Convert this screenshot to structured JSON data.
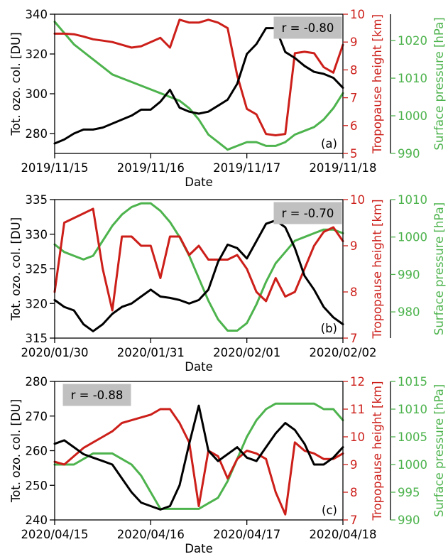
{
  "colors": {
    "ozone": "#000000",
    "tropopause": "#cc1f1a",
    "pressure": "#4db34d",
    "rbox": "#c0c0c0"
  },
  "chart_data": [
    {
      "type": "line",
      "panel_label": "(a)",
      "xlabel": "Date",
      "xticks": [
        "2019/11/15",
        "2019/11/16",
        "2019/11/17",
        "2019/11/18"
      ],
      "xlim": [
        0,
        3
      ],
      "y_left": {
        "label": "Tot. ozo. col. [DU]",
        "lim": [
          270,
          340
        ],
        "ticks": [
          280,
          300,
          320,
          340
        ]
      },
      "y_right1": {
        "label": "Tropopause height [km]",
        "lim": [
          5,
          10
        ],
        "ticks": [
          5,
          6,
          7,
          8,
          9,
          10
        ]
      },
      "y_right2": {
        "label": "Surface pressure [hPa]",
        "lim": [
          990,
          1027
        ],
        "ticks": [
          990,
          1000,
          1010,
          1020
        ]
      },
      "annotation": "r = -0.80",
      "annotation_position": "top-right",
      "series": [
        {
          "axis": "left",
          "color_key": "ozone",
          "x": [
            0,
            0.1,
            0.2,
            0.3,
            0.4,
            0.5,
            0.6,
            0.7,
            0.8,
            0.9,
            1.0,
            1.1,
            1.2,
            1.3,
            1.4,
            1.5,
            1.6,
            1.7,
            1.8,
            1.9,
            2.0,
            2.1,
            2.2,
            2.3,
            2.4,
            2.5,
            2.6,
            2.7,
            2.8,
            2.9,
            3.0
          ],
          "y": [
            275,
            277,
            280,
            282,
            282,
            283,
            285,
            287,
            289,
            292,
            292,
            296,
            302,
            293,
            291,
            290,
            291,
            294,
            297,
            305,
            320,
            325,
            333,
            333,
            321,
            318,
            314,
            311,
            310,
            308,
            303
          ]
        },
        {
          "axis": "right1",
          "color_key": "tropopause",
          "x": [
            0,
            0.1,
            0.2,
            0.3,
            0.4,
            0.5,
            0.6,
            0.7,
            0.8,
            0.9,
            1.0,
            1.1,
            1.2,
            1.3,
            1.4,
            1.5,
            1.6,
            1.7,
            1.8,
            1.9,
            2.0,
            2.1,
            2.2,
            2.3,
            2.4,
            2.5,
            2.6,
            2.7,
            2.8,
            2.9,
            3.0
          ],
          "y": [
            9.3,
            9.3,
            9.28,
            9.2,
            9.1,
            9.05,
            9.0,
            8.9,
            8.8,
            8.85,
            9.0,
            9.15,
            8.8,
            9.8,
            9.7,
            9.7,
            9.8,
            9.7,
            9.5,
            7.8,
            6.6,
            6.4,
            5.7,
            5.65,
            5.7,
            8.6,
            8.65,
            8.6,
            8.1,
            7.9,
            8.9
          ]
        },
        {
          "axis": "right2",
          "color_key": "pressure",
          "x": [
            0,
            0.1,
            0.2,
            0.3,
            0.4,
            0.5,
            0.6,
            0.7,
            0.8,
            0.9,
            1.0,
            1.1,
            1.2,
            1.3,
            1.4,
            1.5,
            1.6,
            1.7,
            1.8,
            1.9,
            2.0,
            2.1,
            2.2,
            2.3,
            2.4,
            2.5,
            2.6,
            2.7,
            2.8,
            2.9,
            3.0
          ],
          "y": [
            1025,
            1022,
            1019,
            1017,
            1015,
            1013,
            1011,
            1010,
            1009,
            1008,
            1007,
            1006,
            1005,
            1004,
            1002,
            999,
            995,
            993,
            991,
            992,
            993,
            993,
            992,
            992,
            993,
            995,
            996,
            997,
            999,
            1002,
            1006
          ]
        }
      ]
    },
    {
      "type": "line",
      "panel_label": "(b)",
      "xlabel": "Date",
      "xticks": [
        "2020/01/30",
        "2020/01/31",
        "2020/02/01",
        "2020/02/02"
      ],
      "xlim": [
        0,
        3
      ],
      "y_left": {
        "label": "Tot. ozo. col. [DU]",
        "lim": [
          315,
          335
        ],
        "ticks": [
          315,
          320,
          325,
          330,
          335
        ]
      },
      "y_right1": {
        "label": "Tropopause height [km]",
        "lim": [
          7,
          10
        ],
        "ticks": [
          7,
          8,
          9,
          10
        ]
      },
      "y_right2": {
        "label": "Surface pressure [hPa]",
        "lim": [
          973,
          1010
        ],
        "ticks": [
          980,
          990,
          1000,
          1010
        ]
      },
      "annotation": "r = -0.70",
      "annotation_position": "top-right",
      "series": [
        {
          "axis": "left",
          "color_key": "ozone",
          "x": [
            0,
            0.1,
            0.2,
            0.3,
            0.4,
            0.5,
            0.6,
            0.7,
            0.8,
            0.9,
            1.0,
            1.1,
            1.2,
            1.3,
            1.4,
            1.5,
            1.6,
            1.7,
            1.8,
            1.9,
            2.0,
            2.1,
            2.2,
            2.3,
            2.4,
            2.5,
            2.6,
            2.7,
            2.8,
            2.9,
            3.0
          ],
          "y": [
            320.5,
            319.5,
            319,
            317,
            316,
            317,
            318.5,
            319.5,
            320,
            321,
            322,
            321,
            320.8,
            320.5,
            320,
            320.5,
            322,
            326,
            328.5,
            328,
            326.5,
            329,
            331.5,
            332,
            331,
            328,
            324,
            322,
            319.5,
            318,
            317
          ]
        },
        {
          "axis": "right1",
          "color_key": "tropopause",
          "x": [
            0,
            0.1,
            0.2,
            0.3,
            0.4,
            0.5,
            0.6,
            0.7,
            0.8,
            0.9,
            1.0,
            1.1,
            1.2,
            1.3,
            1.4,
            1.5,
            1.6,
            1.7,
            1.8,
            1.9,
            2.0,
            2.1,
            2.2,
            2.3,
            2.4,
            2.5,
            2.6,
            2.7,
            2.8,
            2.9,
            3.0
          ],
          "y": [
            8.0,
            9.5,
            9.6,
            9.7,
            9.8,
            8.5,
            7.6,
            9.2,
            9.2,
            9.0,
            9.0,
            8.3,
            9.2,
            9.2,
            8.8,
            9.0,
            8.7,
            8.7,
            8.7,
            8.8,
            8.5,
            8.0,
            7.8,
            8.3,
            7.9,
            8.0,
            8.5,
            9.0,
            9.3,
            9.4,
            9.1
          ]
        },
        {
          "axis": "right2",
          "color_key": "pressure",
          "x": [
            0,
            0.1,
            0.2,
            0.3,
            0.4,
            0.5,
            0.6,
            0.7,
            0.8,
            0.9,
            1.0,
            1.1,
            1.2,
            1.3,
            1.4,
            1.5,
            1.6,
            1.7,
            1.8,
            1.9,
            2.0,
            2.1,
            2.2,
            2.3,
            2.4,
            2.5,
            2.6,
            2.7,
            2.8,
            2.9,
            3.0
          ],
          "y": [
            998,
            996,
            995,
            994,
            995,
            999,
            1003,
            1006,
            1008,
            1009,
            1009,
            1007,
            1004,
            1000,
            995,
            989,
            983,
            978,
            975,
            975,
            977,
            982,
            988,
            993,
            996,
            999,
            1000,
            1001,
            1002,
            1002,
            1001
          ]
        }
      ]
    },
    {
      "type": "line",
      "panel_label": "(c)",
      "xlabel": "Date",
      "xticks": [
        "2020/04/15",
        "2020/04/16",
        "2020/04/17",
        "2020/04/18"
      ],
      "xlim": [
        0,
        3
      ],
      "y_left": {
        "label": "Tot. ozo. col. [DU]",
        "lim": [
          240,
          280
        ],
        "ticks": [
          240,
          250,
          260,
          270,
          280
        ]
      },
      "y_right1": {
        "label": "Tropopause height [km]",
        "lim": [
          7,
          12
        ],
        "ticks": [
          7,
          8,
          9,
          10,
          11,
          12
        ]
      },
      "y_right2": {
        "label": "Surface pressure [hPa]",
        "lim": [
          990,
          1015
        ],
        "ticks": [
          990,
          995,
          1000,
          1005,
          1010,
          1015
        ]
      },
      "annotation": "r = -0.88",
      "annotation_position": "top-left",
      "series": [
        {
          "axis": "left",
          "color_key": "ozone",
          "x": [
            0,
            0.1,
            0.2,
            0.3,
            0.4,
            0.5,
            0.6,
            0.7,
            0.8,
            0.9,
            1.0,
            1.1,
            1.2,
            1.3,
            1.4,
            1.5,
            1.6,
            1.7,
            1.8,
            1.9,
            2.0,
            2.1,
            2.2,
            2.3,
            2.4,
            2.5,
            2.6,
            2.7,
            2.8,
            2.9,
            3.0
          ],
          "y": [
            262,
            263,
            261,
            259,
            258,
            257,
            256,
            252,
            248,
            245,
            244,
            243,
            244,
            250,
            262,
            273,
            260,
            257,
            259,
            261,
            258,
            257,
            261,
            265,
            268,
            266,
            262,
            256,
            256,
            258,
            261
          ]
        },
        {
          "axis": "right1",
          "color_key": "tropopause",
          "x": [
            0,
            0.1,
            0.2,
            0.3,
            0.4,
            0.5,
            0.6,
            0.7,
            0.8,
            0.9,
            1.0,
            1.1,
            1.2,
            1.3,
            1.4,
            1.5,
            1.6,
            1.7,
            1.8,
            1.9,
            2.0,
            2.1,
            2.2,
            2.3,
            2.4,
            2.5,
            2.6,
            2.7,
            2.8,
            2.9,
            3.0
          ],
          "y": [
            9.1,
            9.0,
            9.3,
            9.6,
            9.8,
            10.0,
            10.2,
            10.5,
            10.6,
            10.7,
            10.8,
            11.0,
            11.0,
            10.5,
            9.8,
            7.5,
            9.5,
            9.3,
            8.5,
            9.2,
            9.5,
            9.4,
            9.2,
            8.0,
            7.2,
            9.8,
            9.5,
            9.4,
            9.2,
            9.2,
            9.4
          ]
        },
        {
          "axis": "right2",
          "color_key": "pressure",
          "x": [
            0,
            0.1,
            0.2,
            0.3,
            0.4,
            0.5,
            0.6,
            0.7,
            0.8,
            0.9,
            1.0,
            1.1,
            1.2,
            1.3,
            1.4,
            1.5,
            1.6,
            1.7,
            1.8,
            1.9,
            2.0,
            2.1,
            2.2,
            2.3,
            2.4,
            2.5,
            2.6,
            2.7,
            2.8,
            2.9,
            3.0
          ],
          "y": [
            1000,
            1000,
            1000,
            1001,
            1002,
            1002,
            1002,
            1001,
            1000,
            998,
            995,
            992,
            992,
            992,
            992,
            992,
            993,
            994,
            997,
            1001,
            1005,
            1008,
            1010,
            1011,
            1011,
            1011,
            1011,
            1011,
            1010,
            1010,
            1008
          ]
        }
      ]
    }
  ]
}
